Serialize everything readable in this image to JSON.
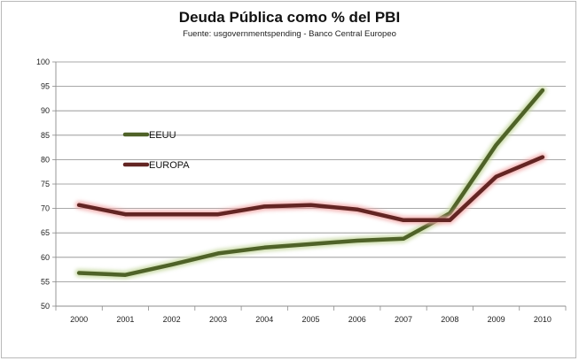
{
  "chart_data": {
    "type": "line",
    "title": "Deuda Pública como % del PBI",
    "subtitle": "Fuente: usgovernmentspending - Banco Central Europeo",
    "xlabel": "",
    "ylabel": "",
    "x": [
      "2000",
      "2001",
      "2002",
      "2003",
      "2004",
      "2005",
      "2006",
      "2007",
      "2008",
      "2009",
      "2010"
    ],
    "ylim": [
      50,
      100
    ],
    "yticks": [
      50,
      55,
      60,
      65,
      70,
      75,
      80,
      85,
      90,
      95,
      100
    ],
    "grid": true,
    "legend_position": "left",
    "series": [
      {
        "name": "EEUU",
        "color": "#4f6228",
        "glow": "#c3d69b",
        "values": [
          56.8,
          56.4,
          58.5,
          60.8,
          62.0,
          62.7,
          63.4,
          63.8,
          69.0,
          83.0,
          94.2
        ]
      },
      {
        "name": "EUROPA",
        "color": "#632523",
        "glow": "#f2a8a8",
        "values": [
          70.7,
          68.8,
          68.8,
          68.8,
          70.4,
          70.7,
          69.8,
          67.6,
          67.6,
          76.5,
          80.5
        ]
      }
    ]
  }
}
